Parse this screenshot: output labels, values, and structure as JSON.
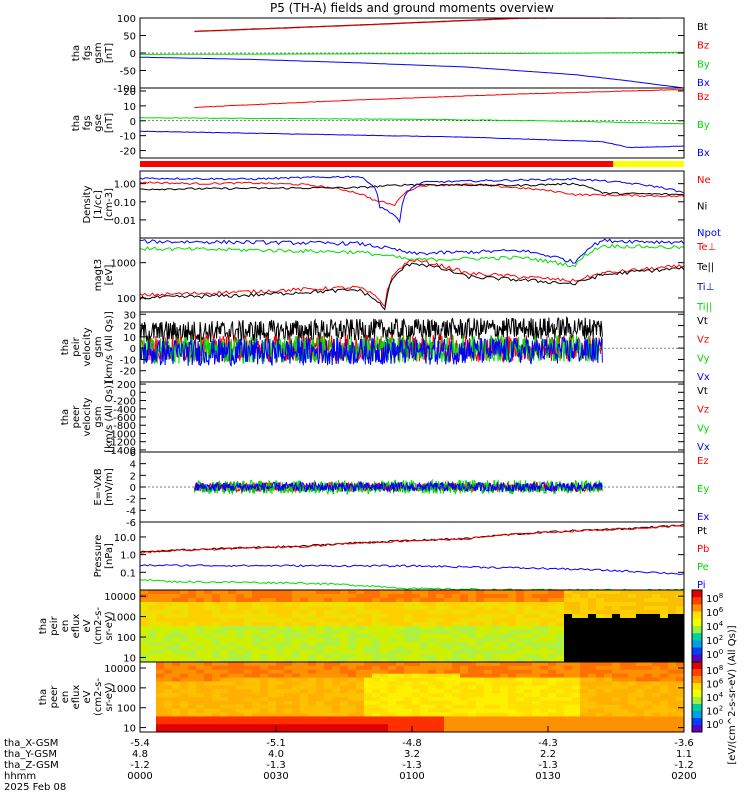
{
  "title": "P5 (TH-A) fields and ground moments overview",
  "colors": {
    "black": "#000000",
    "red": "#ff0000",
    "green": "#00dd00",
    "blue": "#0000ff",
    "yellow": "#ffff00"
  },
  "chart_data": [
    {
      "id": "fgs-gsm",
      "type": "line",
      "ylabel": [
        "tha",
        "fgs",
        "gsm",
        "[nT]"
      ],
      "ylim": [
        -100,
        100
      ],
      "yticks": [
        100,
        50,
        0,
        -50,
        -100
      ],
      "legend": [
        "Bt",
        "Bz",
        "By",
        "Bx"
      ],
      "series": [
        {
          "name": "Bt",
          "color": "black",
          "x": [
            0.1,
            0.4,
            0.7,
            1.0
          ],
          "y": [
            62,
            80,
            100,
            100
          ]
        },
        {
          "name": "Bz",
          "color": "red",
          "x": [
            0.1,
            0.4,
            0.7,
            1.0
          ],
          "y": [
            61,
            79,
            99,
            100
          ]
        },
        {
          "name": "By",
          "color": "green",
          "x": [
            0.0,
            0.25,
            0.5,
            0.75,
            1.0
          ],
          "y": [
            -4,
            -3,
            -2,
            -1,
            2
          ]
        },
        {
          "name": "Bx",
          "color": "blue",
          "x": [
            0.0,
            0.2,
            0.4,
            0.6,
            0.8,
            0.9,
            1.0
          ],
          "y": [
            -12,
            -18,
            -28,
            -40,
            -62,
            -80,
            -100
          ]
        }
      ]
    },
    {
      "id": "fgs-gse",
      "type": "line",
      "ylabel": [
        "tha",
        "fgs",
        "gse",
        "[nT]"
      ],
      "ylim": [
        -25,
        22
      ],
      "yticks": [
        20,
        10,
        0,
        -10,
        -20
      ],
      "legend": [
        "Bz",
        "By",
        "Bx"
      ],
      "series": [
        {
          "name": "Bz",
          "color": "red",
          "x": [
            0.1,
            0.4,
            0.7,
            1.0
          ],
          "y": [
            9,
            14,
            18,
            21
          ]
        },
        {
          "name": "By",
          "color": "green",
          "x": [
            0.0,
            0.5,
            0.75,
            1.0
          ],
          "y": [
            2,
            1,
            0,
            -2
          ]
        },
        {
          "name": "Bx",
          "color": "blue",
          "x": [
            0.0,
            0.3,
            0.6,
            0.85,
            0.9,
            1.0
          ],
          "y": [
            -7,
            -9,
            -11,
            -14,
            -18,
            -17
          ]
        }
      ]
    },
    {
      "id": "density",
      "type": "line",
      "yscale": "log",
      "ylabel": [
        "Density",
        "[1/cc]",
        "[cm-3]"
      ],
      "ylim": [
        0.001,
        5
      ],
      "yticks": [
        1.0,
        0.1,
        0.01
      ],
      "ytick_labels": [
        "1.00",
        "0.10",
        "0.01"
      ],
      "legend": [
        "Ne",
        "Ni",
        "Npot"
      ],
      "series": [
        {
          "name": "Ne",
          "color": "red",
          "x": [
            0.0,
            0.1,
            0.2,
            0.3,
            0.43,
            0.47,
            0.52,
            0.6,
            0.8,
            1.0
          ],
          "y": [
            1.2,
            1.0,
            1.1,
            0.9,
            0.12,
            0.06,
            0.8,
            0.9,
            0.25,
            0.2
          ]
        },
        {
          "name": "Ni",
          "color": "black",
          "x": [
            0.0,
            0.2,
            0.4,
            0.5,
            0.7,
            0.8,
            0.85,
            1.0
          ],
          "y": [
            0.5,
            0.55,
            0.6,
            0.9,
            0.8,
            1.0,
            0.3,
            0.25
          ]
        },
        {
          "name": "Npot",
          "color": "blue",
          "x": [
            0.0,
            0.2,
            0.4,
            0.44,
            0.48,
            0.52,
            0.7,
            0.8,
            1.0
          ],
          "y": [
            2.0,
            1.8,
            2.5,
            0.05,
            0.004,
            1.2,
            1.6,
            1.8,
            0.3
          ]
        }
      ]
    },
    {
      "id": "temperature",
      "type": "line",
      "yscale": "log",
      "ylabel": [
        "magt3",
        "[eV]"
      ],
      "ylim": [
        40,
        5000
      ],
      "yticks": [
        1000,
        100
      ],
      "ytick_labels": [
        "1000",
        "100"
      ],
      "legend": [
        "Te⊥",
        "Te||",
        "Ti⊥",
        "Ti||"
      ],
      "series": [
        {
          "name": "Te⊥",
          "color": "red",
          "x": [
            0.0,
            0.2,
            0.4,
            0.45,
            0.5,
            0.6,
            0.8,
            0.85,
            1.0
          ],
          "y": [
            120,
            150,
            200,
            60,
            1200,
            500,
            300,
            500,
            800
          ]
        },
        {
          "name": "Te||",
          "color": "black",
          "x": [
            0.0,
            0.2,
            0.4,
            0.45,
            0.5,
            0.6,
            0.8,
            0.85,
            1.0
          ],
          "y": [
            100,
            120,
            170,
            45,
            1000,
            400,
            250,
            450,
            700
          ]
        },
        {
          "name": "Ti⊥",
          "color": "blue",
          "x": [
            0.0,
            0.2,
            0.4,
            0.5,
            0.7,
            0.8,
            0.85,
            1.0
          ],
          "y": [
            4000,
            3800,
            3500,
            1800,
            2200,
            1000,
            4200,
            3800
          ]
        },
        {
          "name": "Ti||",
          "color": "green",
          "x": [
            0.0,
            0.2,
            0.4,
            0.5,
            0.7,
            0.8,
            0.85,
            1.0
          ],
          "y": [
            2500,
            2300,
            2000,
            1200,
            1400,
            800,
            3000,
            2700
          ]
        }
      ]
    },
    {
      "id": "peir-velocity",
      "type": "line",
      "ylabel": [
        "tha",
        "peir",
        "velocity",
        "gsm",
        "[km/s (All Qs)]"
      ],
      "ylim": [
        -30,
        32
      ],
      "yticks": [
        30,
        20,
        10,
        0,
        -10,
        -20
      ],
      "legend": [
        "Vt",
        "Vz",
        "Vy",
        "Vx"
      ],
      "series": [
        {
          "name": "Vt",
          "color": "black",
          "x": [
            0.0,
            0.85
          ],
          "y": [
            14,
            18
          ]
        },
        {
          "name": "Vz",
          "color": "red",
          "x": [
            0.0,
            0.85
          ],
          "y": [
            0,
            0
          ]
        },
        {
          "name": "Vy",
          "color": "green",
          "x": [
            0.0,
            0.85
          ],
          "y": [
            -2,
            0
          ]
        },
        {
          "name": "Vx",
          "color": "blue",
          "x": [
            0.0,
            0.85
          ],
          "y": [
            -4,
            -2
          ]
        }
      ]
    },
    {
      "id": "peer-velocity",
      "type": "line",
      "ylabel": [
        "tha",
        "peer",
        "velocity",
        "gsm",
        "[km/s (All Qs)]"
      ],
      "ylim": [
        -1450,
        250
      ],
      "yticks": [
        200,
        0,
        -200,
        -400,
        -600,
        -800,
        -1000,
        -1200,
        -1400
      ],
      "legend": [
        "Vt",
        "Vz",
        "Vy",
        "Vx"
      ],
      "series": []
    },
    {
      "id": "e-field",
      "type": "line",
      "ylabel": [
        "E=-VxB",
        "[mV/m]"
      ],
      "ylim": [
        -6,
        6
      ],
      "yticks": [
        6,
        4,
        2,
        0,
        -2,
        -4,
        -6
      ],
      "legend": [
        "Ez",
        "Ey",
        "Ex"
      ],
      "series": [
        {
          "name": "Ez",
          "color": "red",
          "x": [
            0.1,
            0.85
          ],
          "y": [
            0,
            0
          ]
        },
        {
          "name": "Ey",
          "color": "green",
          "x": [
            0.1,
            0.85
          ],
          "y": [
            0,
            0
          ]
        },
        {
          "name": "Ex",
          "color": "blue",
          "x": [
            0.1,
            0.85
          ],
          "y": [
            0,
            0
          ]
        }
      ]
    },
    {
      "id": "pressure",
      "type": "line",
      "yscale": "log",
      "ylabel": [
        "Pressure",
        "[nPa]"
      ],
      "ylim": [
        0.01,
        70
      ],
      "yticks": [
        10.0,
        1.0,
        0.1
      ],
      "ytick_labels": [
        "10.0",
        "1.0",
        "0.1"
      ],
      "legend": [
        "Pt",
        "Pb",
        "Pe",
        "Pi"
      ],
      "series": [
        {
          "name": "Pt",
          "color": "black",
          "x": [
            0.0,
            0.3,
            0.6,
            0.9,
            1.0
          ],
          "y": [
            1.4,
            3,
            8,
            30,
            45
          ]
        },
        {
          "name": "Pb",
          "color": "red",
          "x": [
            0.0,
            0.3,
            0.6,
            0.9,
            1.0
          ],
          "y": [
            1.3,
            2.9,
            7.8,
            29,
            44
          ]
        },
        {
          "name": "Pe",
          "color": "green",
          "x": [
            0.0,
            0.05,
            0.3,
            0.5,
            0.7,
            1.0
          ],
          "y": [
            0.04,
            0.03,
            0.025,
            0.012,
            0.01,
            0.01
          ]
        },
        {
          "name": "Pi",
          "color": "blue",
          "x": [
            0.0,
            0.2,
            0.5,
            0.8,
            1.0
          ],
          "y": [
            0.25,
            0.24,
            0.23,
            0.15,
            0.08
          ]
        }
      ]
    },
    {
      "id": "peir-spectrogram",
      "type": "heatmap",
      "ylabel": [
        "tha",
        "peir",
        "en",
        "eflux",
        "eV",
        "(cm2-s-",
        "sr-eV)"
      ],
      "yscale": "log",
      "ylim": [
        6,
        20000
      ],
      "yticks": [
        10000,
        1000,
        100,
        10
      ],
      "ytick_labels": [
        "10000",
        "1000",
        "100",
        "10"
      ]
    },
    {
      "id": "peer-spectrogram",
      "type": "heatmap",
      "ylabel": [
        "tha",
        "peer",
        "en",
        "eflux",
        "eV",
        "(cm2-s-",
        "sr-eV)"
      ],
      "yscale": "log",
      "ylim": [
        6,
        20000
      ],
      "yticks": [
        10000,
        1000,
        100,
        10
      ],
      "ytick_labels": [
        "10000",
        "1000",
        "100",
        "10"
      ]
    }
  ],
  "colorbar": {
    "label": "[eV/(cm^2-s-sr-eV) (All Qs)]",
    "tick_labels": [
      "10^8",
      "10^6",
      "10^4",
      "10^2",
      "10^0",
      "10^8",
      "10^6",
      "10^4",
      "10^2",
      "10^0"
    ]
  },
  "x_axis": {
    "labels": [
      "tha_X-GSM",
      "tha_Y-GSM",
      "tha_Z-GSM",
      "hhmm",
      "2025 Feb 08"
    ],
    "columns": [
      {
        "x": "-5.4",
        "y": "4.8",
        "z": "-1.2",
        "hhmm": "0000"
      },
      {
        "x": "-5.1",
        "y": "4.0",
        "z": "-1.3",
        "hhmm": "0030"
      },
      {
        "x": "-4.8",
        "y": "3.2",
        "z": "-1.3",
        "hhmm": "0100"
      },
      {
        "x": "-4.3",
        "y": "2.2",
        "z": "-1.3",
        "hhmm": "0130"
      },
      {
        "x": "-3.6",
        "y": "1.1",
        "z": "-1.2",
        "hhmm": "0200"
      }
    ]
  }
}
